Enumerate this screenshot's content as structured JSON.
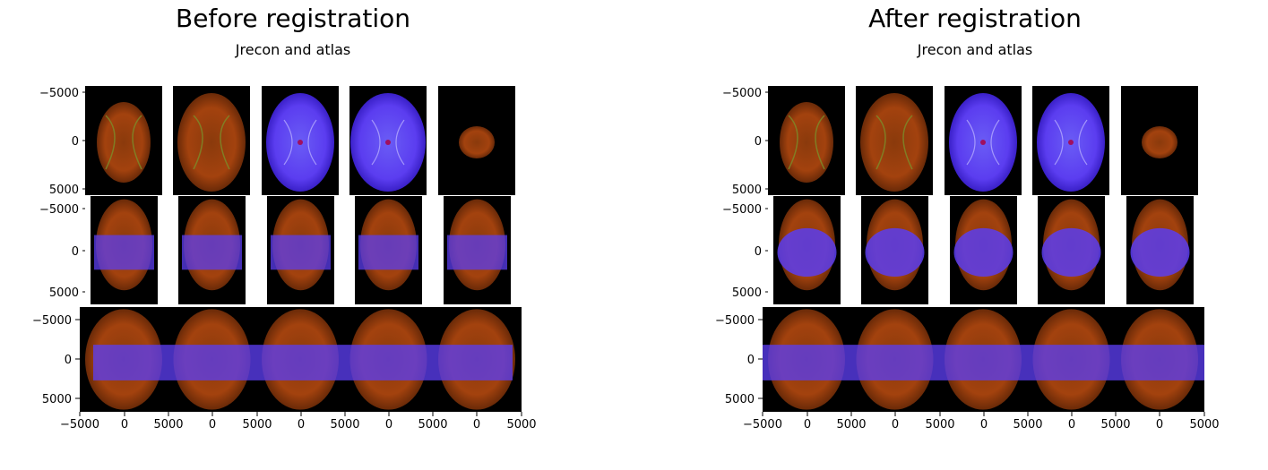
{
  "panels": [
    {
      "title": "Before registration",
      "subtitle": "Jrecon and atlas",
      "registered": false
    },
    {
      "title": "After registration",
      "subtitle": "Jrecon and atlas",
      "registered": true
    }
  ],
  "chart_data": [
    {
      "type": "image-grid",
      "title": "Before registration",
      "subtitle": "Jrecon and atlas",
      "rows": 3,
      "cols": 5,
      "row_views": [
        "axial",
        "coronal",
        "horizontal"
      ],
      "yticks": [
        "−5000",
        "0",
        "5000"
      ],
      "xticks": [
        "−5000",
        "0",
        "5000"
      ],
      "ylim": [
        5500,
        -5500
      ],
      "xlim": [
        -5500,
        5500
      ],
      "overlay_colors": {
        "jrecon": "#b33a10",
        "atlas": "#5a3cf0"
      }
    },
    {
      "type": "image-grid",
      "title": "After registration",
      "subtitle": "Jrecon and atlas",
      "rows": 3,
      "cols": 5,
      "row_views": [
        "axial",
        "coronal",
        "horizontal"
      ],
      "yticks": [
        "−5000",
        "0",
        "5000"
      ],
      "xticks": [
        "−5000",
        "0",
        "5000"
      ],
      "ylim": [
        5500,
        -5500
      ],
      "xlim": [
        -5500,
        5500
      ],
      "overlay_colors": {
        "jrecon": "#b33a10",
        "atlas": "#5a3cf0"
      }
    }
  ]
}
